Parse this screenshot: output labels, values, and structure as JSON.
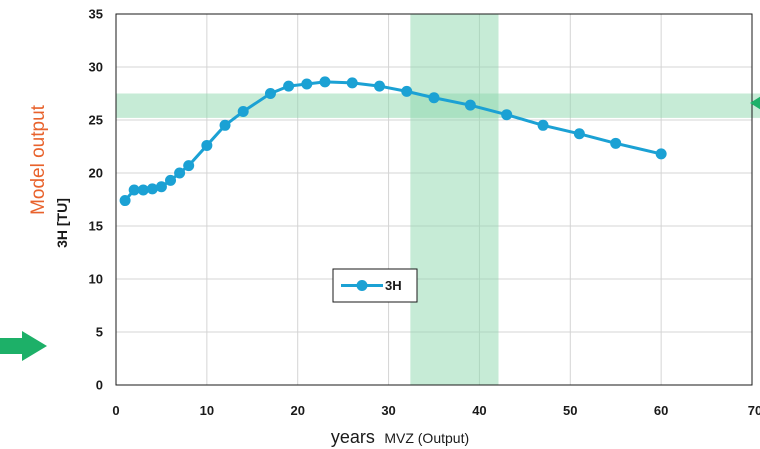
{
  "chart_data": {
    "type": "line",
    "title": "",
    "ylabel": "3H [TU]",
    "xlabel": "years",
    "xlabel_suffix": "MVZ (Output)",
    "side_label": "Model output",
    "xlim": [
      0,
      70
    ],
    "ylim": [
      0,
      35
    ],
    "xticks": [
      0,
      10,
      20,
      30,
      40,
      50,
      60,
      70
    ],
    "yticks": [
      0,
      5,
      10,
      15,
      20,
      25,
      30,
      35
    ],
    "grid": true,
    "legend_position": "lower-center-left",
    "highlight_band_y": [
      25.2,
      27.5
    ],
    "highlight_band_x": [
      32.4,
      42.1
    ],
    "series": [
      {
        "name": "3H",
        "color": "#1BA1D4",
        "x": [
          1,
          2,
          3,
          4,
          5,
          6,
          7,
          8,
          10,
          12,
          14,
          17,
          19,
          21,
          23,
          26,
          29,
          32,
          35,
          39,
          43,
          47,
          51,
          55,
          60
        ],
        "y": [
          17.4,
          18.4,
          18.4,
          18.5,
          18.7,
          19.3,
          20.0,
          20.7,
          22.6,
          24.5,
          25.8,
          27.5,
          28.2,
          28.4,
          28.6,
          28.5,
          28.2,
          27.7,
          27.1,
          26.4,
          25.5,
          24.5,
          23.7,
          22.8,
          21.8
        ]
      }
    ],
    "colors": {
      "series": "#1BA1D4",
      "band": "#8ED8AE",
      "arrow": "#1DB068",
      "side_label": "#E8622C",
      "grid": "#d4d4d4"
    }
  }
}
